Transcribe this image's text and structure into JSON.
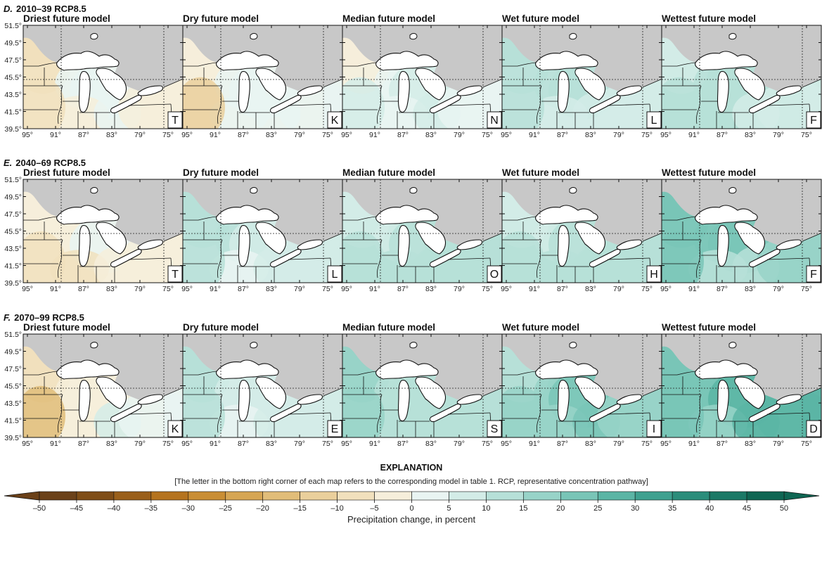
{
  "figure": {
    "rows": [
      {
        "letter": "D.",
        "period": "2010–39 RCP8.5",
        "panels": [
          {
            "title": "Driest future model",
            "model": "T",
            "change": [
              -6,
              2,
              3,
              -4,
              2,
              -2,
              -8
            ]
          },
          {
            "title": "Dry future model",
            "model": "K",
            "change": [
              -4,
              3,
              4,
              2,
              4,
              2,
              -12
            ]
          },
          {
            "title": "Median future model",
            "model": "N",
            "change": [
              -2,
              4,
              6,
              4,
              7,
              4,
              6
            ]
          },
          {
            "title": "Wet future model",
            "model": "L",
            "change": [
              13,
              10,
              12,
              6,
              9,
              8,
              10
            ]
          },
          {
            "title": "Wettest future model",
            "model": "F",
            "change": [
              9,
              14,
              12,
              10,
              9,
              9,
              10
            ]
          }
        ]
      },
      {
        "letter": "E.",
        "period": "2040–69 RCP8.5",
        "panels": [
          {
            "title": "Driest future model",
            "model": "T",
            "change": [
              -3,
              -4,
              0,
              -6,
              -3,
              -4,
              -10
            ]
          },
          {
            "title": "Dry future model",
            "model": "L",
            "change": [
              14,
              10,
              6,
              3,
              6,
              5,
              12
            ]
          },
          {
            "title": "Median future model",
            "model": "O",
            "change": [
              8,
              9,
              12,
              11,
              12,
              10,
              11
            ]
          },
          {
            "title": "Wet future model",
            "model": "H",
            "change": [
              7,
              9,
              13,
              12,
              14,
              14,
              13
            ]
          },
          {
            "title": "Wettest future model",
            "model": "F",
            "change": [
              22,
              20,
              24,
              14,
              14,
              18,
              22
            ]
          }
        ]
      },
      {
        "letter": "F.",
        "period": "2070–99 RCP8.5",
        "panels": [
          {
            "title": "Driest future model",
            "model": "K",
            "change": [
              -8,
              -4,
              -3,
              -2,
              5,
              2,
              -16
            ]
          },
          {
            "title": "Dry future model",
            "model": "E",
            "change": [
              11,
              9,
              6,
              3,
              8,
              6,
              10
            ]
          },
          {
            "title": "Median future model",
            "model": "S",
            "change": [
              15,
              14,
              13,
              12,
              14,
              12,
              16
            ]
          },
          {
            "title": "Wet future model",
            "model": "I",
            "change": [
              13,
              15,
              20,
              18,
              22,
              18,
              17
            ]
          },
          {
            "title": "Wettest future model",
            "model": "D",
            "change": [
              24,
              20,
              26,
              19,
              27,
              26,
              23
            ]
          }
        ]
      }
    ],
    "lat_labels": [
      "51.5°",
      "49.5°",
      "47.5°",
      "45.5°",
      "43.5°",
      "41.5°",
      "39.5°"
    ],
    "lon_labels": [
      "95°",
      "91°",
      "87°",
      "83°",
      "79°",
      "75°"
    ]
  },
  "legend": {
    "heading": "EXPLANATION",
    "note": "[The letter in the bottom right corner of each map refers to the corresponding model in table 1. RCP, representative concentration pathway]",
    "axis_label": "Precipitation change, in percent",
    "ticks": [
      "–50",
      "–45",
      "–40",
      "–35",
      "–30",
      "–25",
      "–20",
      "–15",
      "–10",
      "–5",
      "0",
      "5",
      "10",
      "15",
      "20",
      "25",
      "30",
      "35",
      "40",
      "45",
      "50"
    ],
    "colors": [
      "#6b4119",
      "#7f4d17",
      "#9a5f1a",
      "#b5741f",
      "#c98e34",
      "#d6a654",
      "#e1bd79",
      "#eacf9c",
      "#f1e0bd",
      "#f6eedb",
      "#e9f4f2",
      "#d3ece7",
      "#b7e0d8",
      "#98d3c8",
      "#79c5b7",
      "#5bb5a5",
      "#3fa190",
      "#2b8d7b",
      "#1b7966",
      "#0f6653"
    ]
  }
}
